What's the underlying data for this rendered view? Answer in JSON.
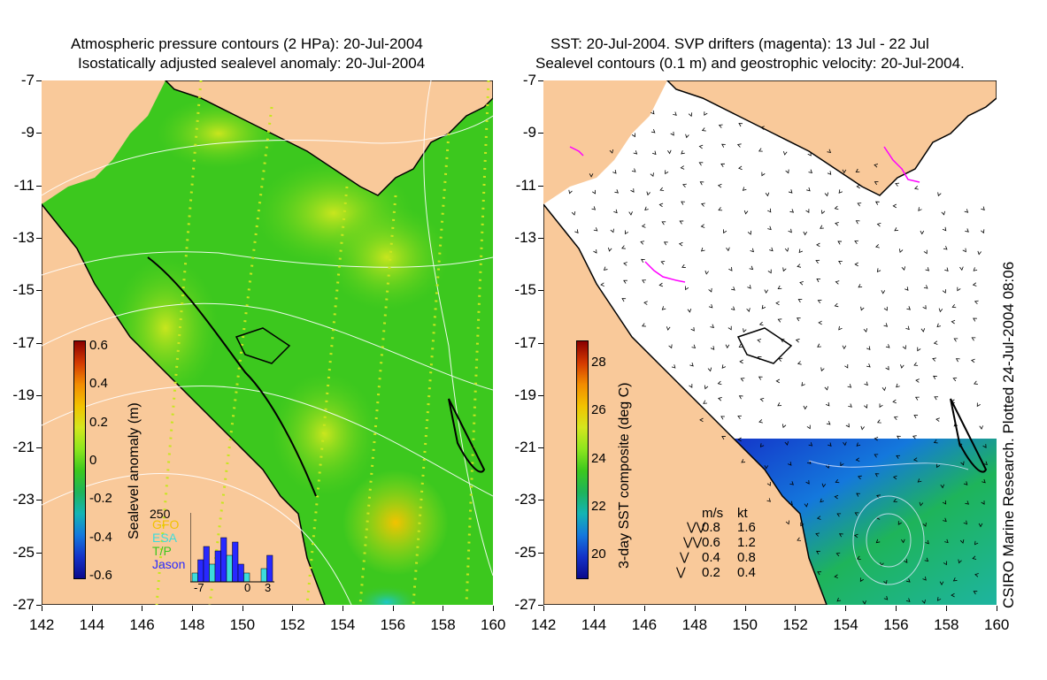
{
  "left_panel": {
    "title_line1": "Atmospheric pressure contours (2 HPa): 20-Jul-2004",
    "title_line2": "Isostatically adjusted sealevel anomaly: 20-Jul-2004",
    "colorbar": {
      "label": "Sealevel anomaly (m)",
      "ticks": [
        "0.6",
        "0.4",
        "0.2",
        "0",
        "-0.2",
        "-0.4",
        "-0.6"
      ],
      "colors": [
        "#8b0000",
        "#d43a00",
        "#f28c00",
        "#f2c200",
        "#d4e61e",
        "#8ee61e",
        "#3cc81e",
        "#1eb45a",
        "#14b4b4",
        "#1478dc",
        "#1432c8",
        "#0a0a8c"
      ]
    },
    "inset": {
      "max_label": "250",
      "legend": [
        "GFO",
        "ESA",
        "T/P",
        "Jason"
      ],
      "legend_colors": [
        "#f2c200",
        "#3cdcdc",
        "#3cc81e",
        "#2828ff"
      ],
      "x_ticks": [
        "-7",
        "0",
        "3"
      ]
    }
  },
  "right_panel": {
    "title_line1": "SST: 20-Jul-2004. SVP drifters (magenta): 13 Jul - 22 Jul",
    "title_line2": "Sealevel contours (0.1 m) and geostrophic velocity: 20-Jul-2004.",
    "colorbar": {
      "label": "3-day SST composite (deg C)",
      "ticks": [
        "28",
        "26",
        "24",
        "22",
        "20"
      ],
      "colors": [
        "#8b0000",
        "#d43a00",
        "#f28c00",
        "#f2c200",
        "#d4e61e",
        "#8ee61e",
        "#3cc81e",
        "#1eb45a",
        "#14b4b4",
        "#1478dc",
        "#1432c8",
        "#0a0a8c"
      ]
    },
    "speed_key": {
      "header_ms": "m/s",
      "header_kt": "kt",
      "rows": [
        {
          "ms": "0.8",
          "kt": "1.6"
        },
        {
          "ms": "0.6",
          "kt": "1.2"
        },
        {
          "ms": "0.4",
          "kt": "0.8"
        },
        {
          "ms": "0.2",
          "kt": "0.4"
        }
      ]
    }
  },
  "axes": {
    "y_ticks": [
      "-7",
      "-9",
      "-11",
      "-13",
      "-15",
      "-17",
      "-19",
      "-21",
      "-23",
      "-25",
      "-27"
    ],
    "x_ticks": [
      "142",
      "144",
      "146",
      "148",
      "150",
      "152",
      "154",
      "156",
      "158",
      "160"
    ]
  },
  "credit": "CSIRO Marine Research. Plotted 24-Jul-2004 08:06",
  "colors": {
    "land": "#f9c99a",
    "ocean_green": "#3cc81e",
    "coast": "#000000",
    "drifter": "#ff00ff"
  }
}
